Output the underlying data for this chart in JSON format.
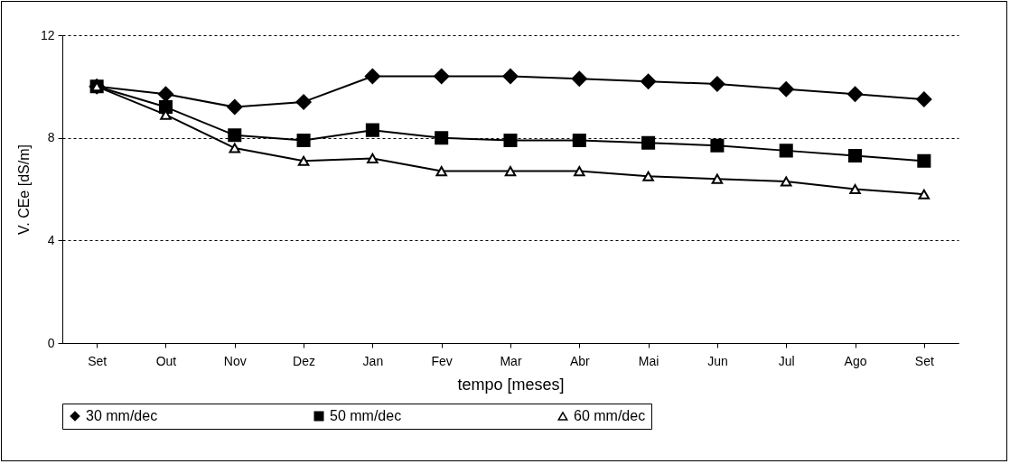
{
  "chart_data": {
    "type": "line",
    "xlabel": "tempo [meses]",
    "ylabel": "V. CEe [dS/m]",
    "categories": [
      "Set",
      "Out",
      "Nov",
      "Dez",
      "Jan",
      "Fev",
      "Mar",
      "Abr",
      "Mai",
      "Jun",
      "Jul",
      "Ago",
      "Set"
    ],
    "ylim": [
      0,
      12
    ],
    "yticks": [
      0,
      4,
      8,
      12
    ],
    "grid": "y",
    "legend": "bottom",
    "line_style": "solid",
    "series": [
      {
        "name": "30 mm/dec",
        "color": "#000000",
        "marker": "diamond",
        "values": [
          10.0,
          9.7,
          9.2,
          9.4,
          10.4,
          10.4,
          10.4,
          10.3,
          10.2,
          10.1,
          9.9,
          9.7,
          9.5
        ]
      },
      {
        "name": "50 mm/dec",
        "color": "#000000",
        "marker": "square",
        "values": [
          10.0,
          9.2,
          8.1,
          7.9,
          8.3,
          8.0,
          7.9,
          7.9,
          7.8,
          7.7,
          7.5,
          7.3,
          7.1
        ]
      },
      {
        "name": "60 mm/dec",
        "color": "#000000",
        "marker": "triangle",
        "values": [
          10.0,
          8.9,
          7.6,
          7.1,
          7.2,
          6.7,
          6.7,
          6.7,
          6.5,
          6.4,
          6.3,
          6.0,
          5.8
        ]
      }
    ]
  }
}
